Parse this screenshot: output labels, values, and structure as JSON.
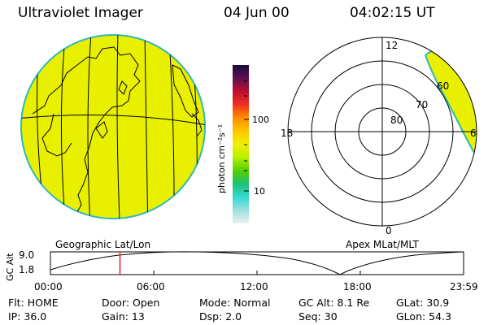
{
  "header": {
    "title": "Ultraviolet Imager",
    "date": "04 Jun 00",
    "time": "04:02:15 UT"
  },
  "colorbar": {
    "unit": "photon cm⁻²s⁻¹",
    "ticks": [
      "100",
      "10"
    ],
    "colors": [
      "#1a0a3a",
      "#5a1050",
      "#c01030",
      "#f03020",
      "#ff8c00",
      "#ffc800",
      "#f0f000",
      "#b8f000",
      "#50d000",
      "#20c070",
      "#30d8d0",
      "#a0e0e0",
      "#f0f0f0"
    ]
  },
  "left_map": {
    "label": "Geographic Lat/Lon",
    "fill_color": "#e8f000",
    "edge_color": "#30b8b8"
  },
  "right_map": {
    "label": "Apex MLat/MLT",
    "mlt_labels": [
      "12",
      "18",
      "6",
      "0"
    ],
    "mlat_labels": [
      "60",
      "70",
      "80"
    ]
  },
  "altitude_plot": {
    "ylabel": "GC Alt",
    "yticks": [
      "9.0",
      "1.8"
    ],
    "xticks": [
      "00:00",
      "06:00",
      "12:00",
      "18:00",
      "23:59"
    ],
    "marker_hour": 4.04,
    "marker_color": "#e02020"
  },
  "footer": {
    "row1": [
      "Flt: HOME",
      "Door: Open",
      "Mode: Normal",
      "GC Alt: 8.1 Re",
      "GLat: 30.9"
    ],
    "row2": [
      "IP: 36.0",
      "Gain: 13",
      "Dsp: 2.0",
      "Seq: 30",
      "GLon: 54.3"
    ]
  }
}
